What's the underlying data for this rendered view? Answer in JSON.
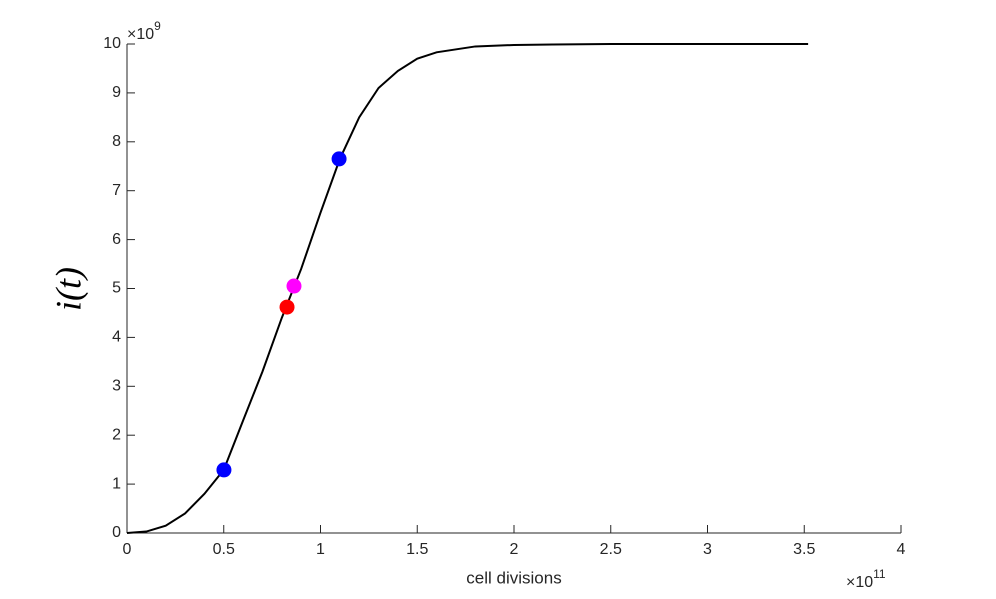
{
  "chart_data": {
    "type": "line",
    "x_label": "cell divisions",
    "y_label": "i(t)",
    "x_multiplier": {
      "base": "×10",
      "power": "11"
    },
    "y_multiplier": {
      "base": "×10",
      "power": "9"
    },
    "xlim": [
      0,
      4
    ],
    "ylim": [
      0,
      10
    ],
    "xticks": [
      0,
      0.5,
      1,
      1.5,
      2,
      2.5,
      3,
      3.5,
      4
    ],
    "yticks": [
      0,
      1,
      2,
      3,
      4,
      5,
      6,
      7,
      8,
      9,
      10
    ],
    "curve": {
      "color": "#000000",
      "x": [
        0,
        0.1,
        0.2,
        0.3,
        0.4,
        0.5,
        0.6,
        0.7,
        0.8,
        0.9,
        1.0,
        1.1,
        1.2,
        1.3,
        1.4,
        1.5,
        1.6,
        1.8,
        2.0,
        2.2,
        2.5,
        3.0,
        3.52
      ],
      "values": [
        0,
        0.03,
        0.15,
        0.4,
        0.8,
        1.29,
        2.3,
        3.3,
        4.4,
        5.4,
        6.55,
        7.65,
        8.5,
        9.1,
        9.45,
        9.7,
        9.83,
        9.95,
        9.98,
        9.99,
        10,
        10,
        10
      ]
    },
    "points": [
      {
        "x": 0.501,
        "y": 1.29,
        "color": "#0000ff"
      },
      {
        "x": 1.096,
        "y": 7.65,
        "color": "#0000ff"
      },
      {
        "x": 0.827,
        "y": 4.62,
        "color": "#ff0000"
      },
      {
        "x": 0.863,
        "y": 5.05,
        "color": "#ff00ff"
      }
    ]
  }
}
